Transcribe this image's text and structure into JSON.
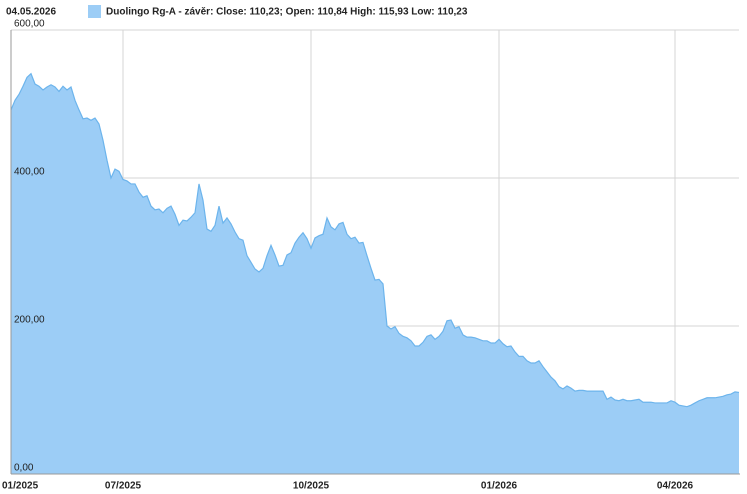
{
  "chart_data": {
    "type": "area",
    "date_label": "04.05.2026",
    "categories": [
      "01/2025",
      null,
      null,
      null,
      null,
      null,
      null,
      null,
      null,
      null,
      null,
      null,
      null,
      null,
      null,
      null,
      null,
      null,
      null,
      null,
      null,
      null,
      null,
      null,
      null,
      null,
      null,
      null,
      "07/2025",
      null,
      null,
      null,
      null,
      null,
      null,
      null,
      null,
      null,
      null,
      null,
      null,
      null,
      null,
      null,
      null,
      null,
      null,
      null,
      null,
      null,
      null,
      null,
      null,
      null,
      null,
      null,
      null,
      null,
      null,
      null,
      null,
      null,
      null,
      null,
      null,
      null,
      null,
      null,
      null,
      null,
      null,
      null,
      null,
      null,
      null,
      "10/2025",
      null,
      null,
      null,
      null,
      null,
      null,
      null,
      null,
      null,
      null,
      null,
      null,
      null,
      null,
      null,
      null,
      null,
      null,
      null,
      null,
      null,
      null,
      null,
      null,
      null,
      null,
      null,
      null,
      null,
      null,
      null,
      null,
      null,
      null,
      null,
      null,
      null,
      null,
      null,
      null,
      null,
      null,
      null,
      null,
      null,
      null,
      "01/2026",
      null,
      null,
      null,
      null,
      null,
      null,
      null,
      null,
      null,
      null,
      null,
      null,
      null,
      null,
      null,
      null,
      null,
      null,
      null,
      null,
      null,
      null,
      null,
      null,
      null,
      null,
      null,
      null,
      null,
      null,
      null,
      null,
      null,
      null,
      null,
      null,
      null,
      null,
      null,
      null,
      null,
      null,
      null,
      "04/2026",
      null,
      null,
      null,
      null,
      null,
      null,
      null,
      null,
      null,
      null,
      null,
      null,
      null,
      null,
      null,
      null
    ],
    "series": [
      {
        "name": "Duolingo Rg-A - závěr: Close: 110,23; Open: 110,84 High: 115,93 Low: 110,23",
        "color": "#9ccdf6",
        "line_color": "#6cb4ec",
        "values": [
          492,
          505,
          513,
          524,
          536,
          541,
          527,
          524,
          519,
          523,
          526,
          523,
          517,
          524,
          519,
          523,
          505,
          492,
          480,
          481,
          478,
          481,
          473,
          451,
          424,
          400,
          412,
          409,
          398,
          396,
          392,
          392,
          381,
          374,
          376,
          362,
          357,
          358,
          353,
          359,
          362,
          351,
          336,
          343,
          342,
          347,
          353,
          392,
          370,
          331,
          328,
          336,
          362,
          339,
          346,
          338,
          327,
          318,
          316,
          295,
          286,
          277,
          273,
          278,
          295,
          309,
          296,
          281,
          282,
          296,
          299,
          312,
          320,
          326,
          318,
          305,
          319,
          322,
          324,
          346,
          334,
          330,
          338,
          340,
          324,
          318,
          320,
          312,
          313,
          295,
          278,
          262,
          263,
          257,
          200,
          196,
          199,
          190,
          186,
          184,
          180,
          173,
          173,
          178,
          186,
          188,
          182,
          186,
          193,
          207,
          208,
          197,
          199,
          188,
          185,
          185,
          184,
          182,
          180,
          180,
          177,
          177,
          182,
          176,
          172,
          173,
          165,
          159,
          159,
          153,
          150,
          150,
          153,
          145,
          138,
          131,
          126,
          118,
          115,
          119,
          116,
          112,
          113,
          113,
          112,
          112,
          112,
          112,
          112,
          101,
          104,
          100,
          99,
          101,
          99,
          99,
          100,
          101,
          97,
          97,
          97,
          96,
          96,
          96,
          96,
          99,
          97,
          93,
          92,
          91,
          93,
          96,
          99,
          101,
          103,
          103,
          103,
          104,
          105,
          107,
          108,
          111,
          110.23
        ]
      }
    ],
    "ylim": [
      0,
      600
    ],
    "yticks": [
      {
        "value": 0,
        "label": "0,00"
      },
      {
        "value": 200,
        "label": "200,00"
      },
      {
        "value": 400,
        "label": "400,00"
      },
      {
        "value": 600,
        "label": "600,00"
      }
    ],
    "grid": true
  }
}
